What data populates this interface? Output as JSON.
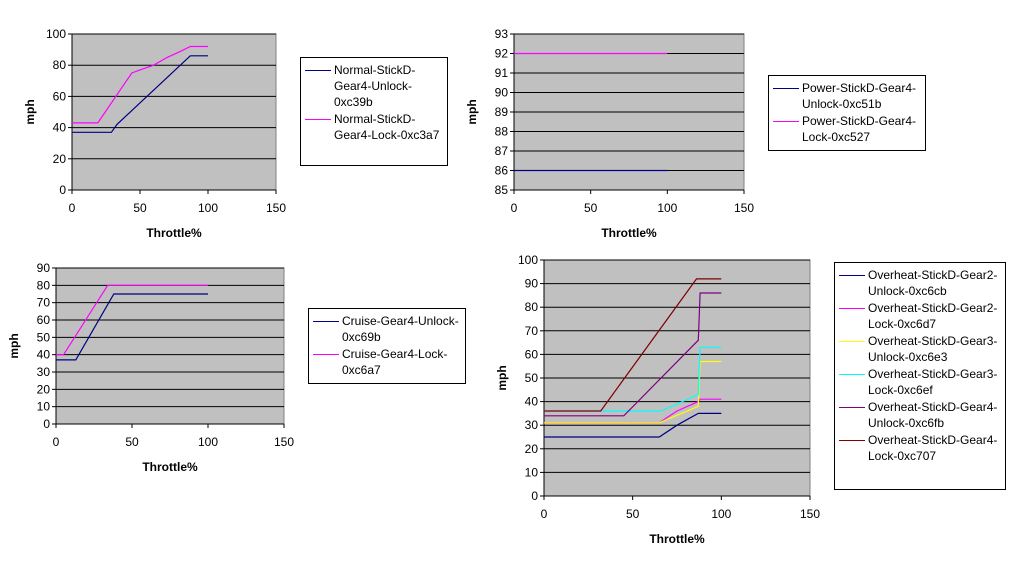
{
  "chart_data": [
    {
      "type": "line",
      "xlabel": "Throttle%",
      "ylabel": "mph",
      "xlim": [
        0,
        150
      ],
      "ylim": [
        0,
        100
      ],
      "xticks": [
        0,
        50,
        100,
        150
      ],
      "yticks": [
        0,
        20,
        40,
        60,
        80,
        100
      ],
      "grid": true,
      "legend": "right",
      "series": [
        {
          "name": "Normal-StickD-Gear4-Unlock-0xc39b",
          "color": "#000080",
          "points": [
            [
              0,
              37
            ],
            [
              29,
              37
            ],
            [
              33,
              42
            ],
            [
              87,
              86
            ],
            [
              100,
              86
            ]
          ]
        },
        {
          "name": "Normal-StickD-Gear4-Lock-0xc3a7",
          "color": "#FF00FF",
          "points": [
            [
              0,
              43
            ],
            [
              19,
              43
            ],
            [
              44,
              75
            ],
            [
              50,
              77
            ],
            [
              60,
              80
            ],
            [
              70,
              85
            ],
            [
              80,
              89
            ],
            [
              87,
              92
            ],
            [
              100,
              92
            ]
          ]
        }
      ]
    },
    {
      "type": "line",
      "xlabel": "Throttle%",
      "ylabel": "mph",
      "xlim": [
        0,
        150
      ],
      "ylim": [
        85,
        93
      ],
      "xticks": [
        0,
        50,
        100,
        150
      ],
      "yticks": [
        85,
        86,
        87,
        88,
        89,
        90,
        91,
        92,
        93
      ],
      "grid": true,
      "legend": "right",
      "series": [
        {
          "name": "Power-StickD-Gear4-Unlock-0xc51b",
          "color": "#000080",
          "points": [
            [
              0,
              86
            ],
            [
              100,
              86
            ]
          ]
        },
        {
          "name": "Power-StickD-Gear4-Lock-0xc527",
          "color": "#FF00FF",
          "points": [
            [
              0,
              92
            ],
            [
              100,
              92
            ]
          ]
        }
      ]
    },
    {
      "type": "line",
      "xlabel": "Throttle%",
      "ylabel": "mph",
      "xlim": [
        0,
        150
      ],
      "ylim": [
        0,
        90
      ],
      "xticks": [
        0,
        50,
        100,
        150
      ],
      "yticks": [
        0,
        10,
        20,
        30,
        40,
        50,
        60,
        70,
        80,
        90
      ],
      "grid": true,
      "legend": "right",
      "series": [
        {
          "name": "Cruise-Gear4-Unlock-0xc69b",
          "color": "#000080",
          "points": [
            [
              0,
              37
            ],
            [
              13,
              37
            ],
            [
              38,
              75
            ],
            [
              100,
              75
            ]
          ]
        },
        {
          "name": "Cruise-Gear4-Lock-0xc6a7",
          "color": "#FF00FF",
          "points": [
            [
              0,
              40
            ],
            [
              5,
              40
            ],
            [
              34,
              80
            ],
            [
              100,
              80
            ]
          ]
        }
      ]
    },
    {
      "type": "line",
      "xlabel": "Throttle%",
      "ylabel": "mph",
      "xlim": [
        0,
        150
      ],
      "ylim": [
        0,
        100
      ],
      "xticks": [
        0,
        50,
        100,
        150
      ],
      "yticks": [
        0,
        10,
        20,
        30,
        40,
        50,
        60,
        70,
        80,
        90,
        100
      ],
      "grid": true,
      "legend": "right",
      "series": [
        {
          "name": "Overheat-StickD-Gear2-Unlock-0xc6cb",
          "color": "#000080",
          "points": [
            [
              0,
              25
            ],
            [
              65,
              25
            ],
            [
              75,
              30
            ],
            [
              87,
              35
            ],
            [
              100,
              35
            ]
          ]
        },
        {
          "name": "Overheat-StickD-Gear2-Lock-0xc6d7",
          "color": "#FF00FF",
          "points": [
            [
              0,
              31
            ],
            [
              65,
              31
            ],
            [
              75,
              36
            ],
            [
              87,
              40
            ],
            [
              88,
              41
            ],
            [
              100,
              41
            ]
          ]
        },
        {
          "name": "Overheat-StickD-Gear3-Unlock-0xc6e3",
          "color": "#FFFF00",
          "points": [
            [
              0,
              31
            ],
            [
              65,
              31
            ],
            [
              87,
              38
            ],
            [
              88,
              57
            ],
            [
              100,
              57
            ]
          ]
        },
        {
          "name": "Overheat-StickD-Gear3-Lock-0xc6ef",
          "color": "#00FFFF",
          "points": [
            [
              0,
              36
            ],
            [
              66,
              36
            ],
            [
              75,
              39
            ],
            [
              87,
              43
            ],
            [
              88,
              63
            ],
            [
              100,
              63
            ]
          ]
        },
        {
          "name": "Overheat-StickD-Gear4-Unlock-0xc6fb",
          "color": "#800080",
          "points": [
            [
              0,
              34
            ],
            [
              45,
              34
            ],
            [
              87,
              66
            ],
            [
              88,
              86
            ],
            [
              100,
              86
            ]
          ]
        },
        {
          "name": "Overheat-StickD-Gear4-Lock-0xc707",
          "color": "#800000",
          "points": [
            [
              0,
              36
            ],
            [
              32,
              36
            ],
            [
              86,
              92
            ],
            [
              100,
              92
            ]
          ]
        }
      ]
    }
  ]
}
